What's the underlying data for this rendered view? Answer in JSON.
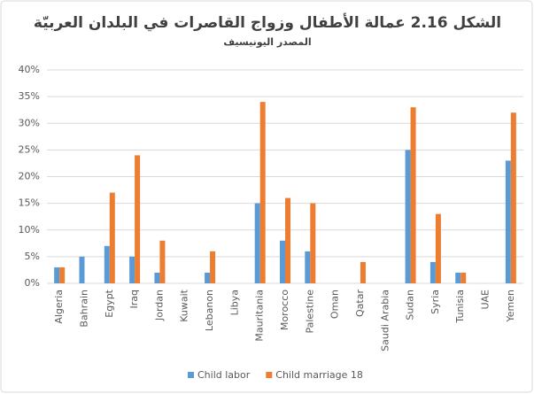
{
  "chart_data": {
    "type": "bar",
    "title": "الشكل 2.16 عمالة الأطفال وزواج القاصرات في البلدان العربيّة",
    "subtitle": "المصدر اليونيسيف",
    "categories": [
      "Algeria",
      "Bahrain",
      "Egypt",
      "Iraq",
      "Jordan",
      "Kuwait",
      "Lebanon",
      "Libya",
      "Mauritania",
      "Morocco",
      "Palestine",
      "Oman",
      "Qatar",
      "Saudi Arabia",
      "Sudan",
      "Syria",
      "Tunisia",
      "UAE",
      "Yemen"
    ],
    "series": [
      {
        "name": "Child labor",
        "color": "#5b9bd5",
        "values": [
          3,
          5,
          7,
          5,
          2,
          null,
          2,
          null,
          15,
          8,
          6,
          null,
          null,
          null,
          25,
          4,
          2,
          null,
          23
        ]
      },
      {
        "name": "Child marriage 18",
        "color": "#ed7d31",
        "values": [
          3,
          null,
          17,
          24,
          8,
          null,
          6,
          null,
          34,
          16,
          15,
          null,
          4,
          null,
          33,
          13,
          2,
          null,
          32
        ]
      }
    ],
    "ylim": [
      0,
      40
    ],
    "yticks": [
      {
        "value": 0,
        "label": "0%"
      },
      {
        "value": 5,
        "label": "5%"
      },
      {
        "value": 10,
        "label": "10%"
      },
      {
        "value": 15,
        "label": "15%"
      },
      {
        "value": 20,
        "label": "20%"
      },
      {
        "value": 25,
        "label": "25%"
      },
      {
        "value": 30,
        "label": "30%"
      },
      {
        "value": 35,
        "label": "35%"
      },
      {
        "value": 40,
        "label": "40%"
      }
    ],
    "grid": true,
    "legend": "bottom"
  }
}
